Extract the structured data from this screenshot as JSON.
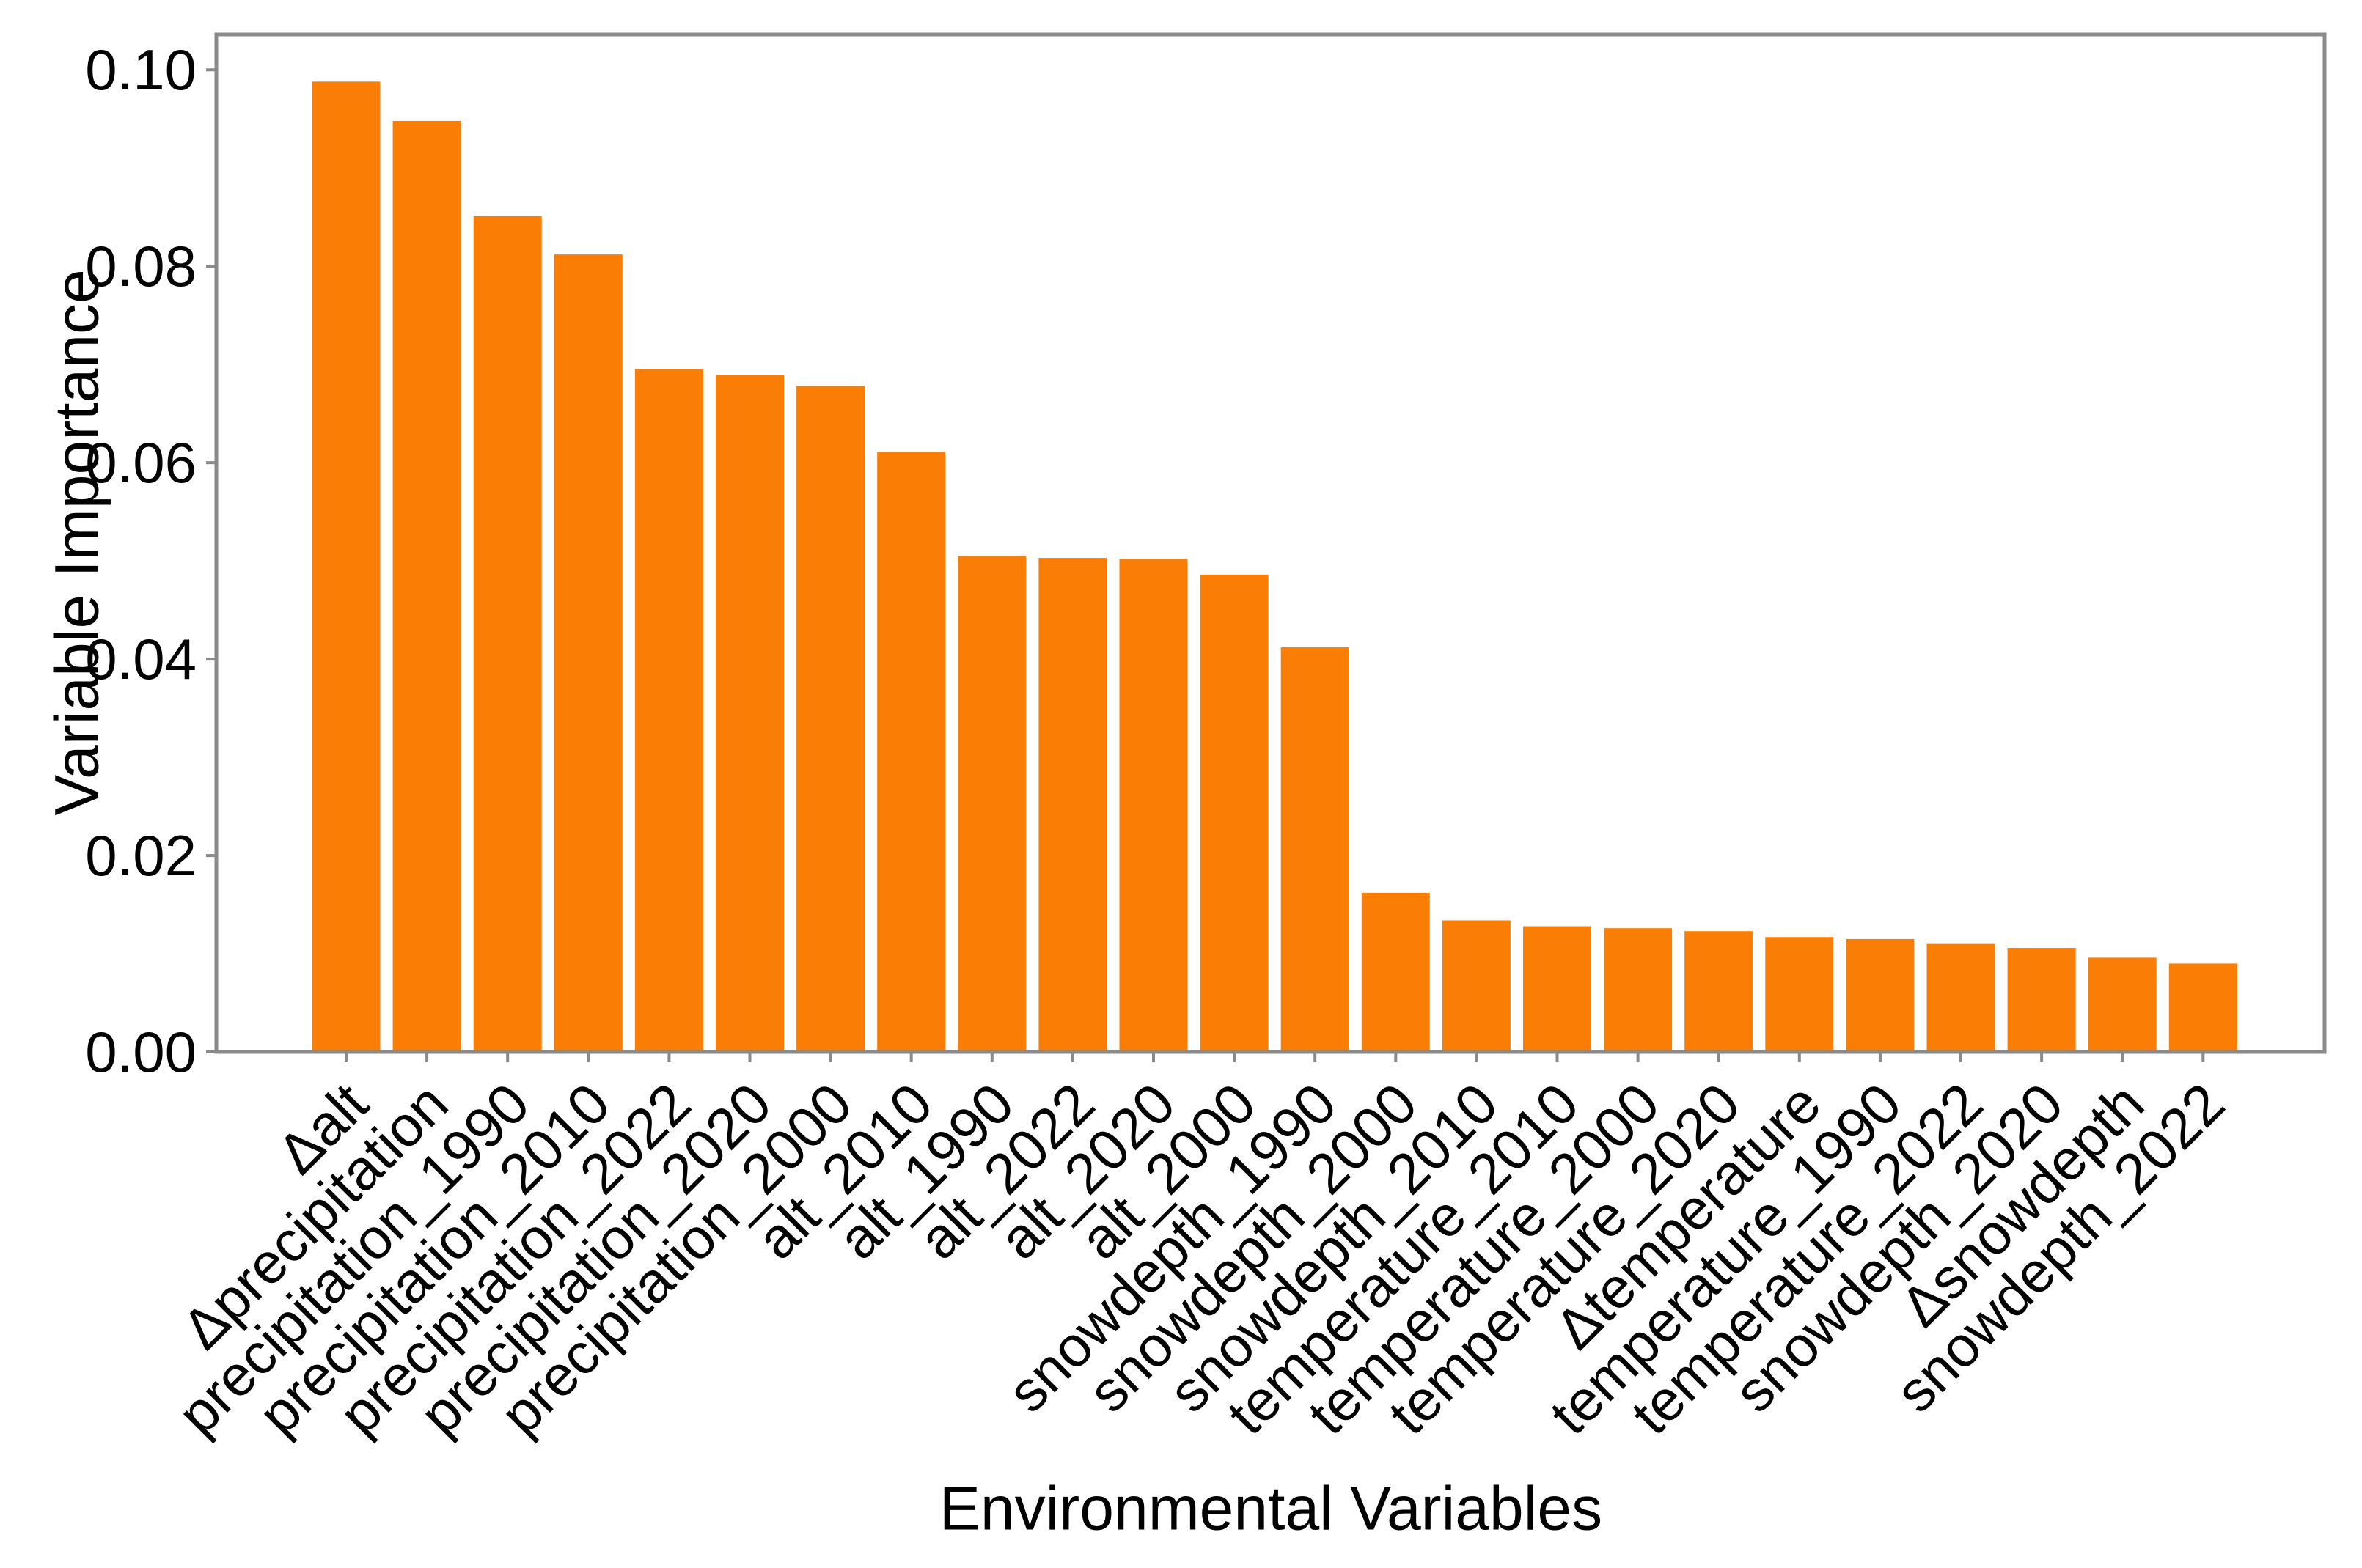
{
  "chart_data": {
    "type": "bar",
    "title": "",
    "xlabel": "Environmental Variables",
    "ylabel": "Variable Importance",
    "categories": [
      "Δalt",
      "Δprecipitation",
      "precipitation_1990",
      "precipitation_2010",
      "precipitation_2022",
      "precipitation_2020",
      "precipitation_2000",
      "alt_2010",
      "alt_1990",
      "alt_2022",
      "alt_2020",
      "alt_2000",
      "snowdepth_1990",
      "snowdepth_2000",
      "snowdepth_2010",
      "temperature_2010",
      "temperature_2000",
      "temperature_2020",
      "Δtemperature",
      "temperature_1990",
      "temperature_2022",
      "snowdepth_2020",
      "Δsnowdepth",
      "snowdepth_2022"
    ],
    "values": [
      0.0988,
      0.0948,
      0.0851,
      0.0812,
      0.0695,
      0.0689,
      0.0678,
      0.0611,
      0.0505,
      0.0503,
      0.0502,
      0.0486,
      0.0412,
      0.0162,
      0.0134,
      0.0128,
      0.0126,
      0.0123,
      0.0117,
      0.0115,
      0.011,
      0.0106,
      0.0096,
      0.009
    ],
    "ylim": [
      0,
      0.1036
    ],
    "yticks": [
      0.0,
      0.02,
      0.04,
      0.06,
      0.08,
      0.1
    ],
    "ytick_labels": [
      "0.00",
      "0.02",
      "0.04",
      "0.06",
      "0.08",
      "0.10"
    ],
    "grid": false,
    "legend": null,
    "bar_color": "#fa7e06",
    "spine_color": "#8a8a8a",
    "tick_color": "#8a8a8a",
    "text_color": "#000000",
    "background_color": "#ffffff"
  }
}
